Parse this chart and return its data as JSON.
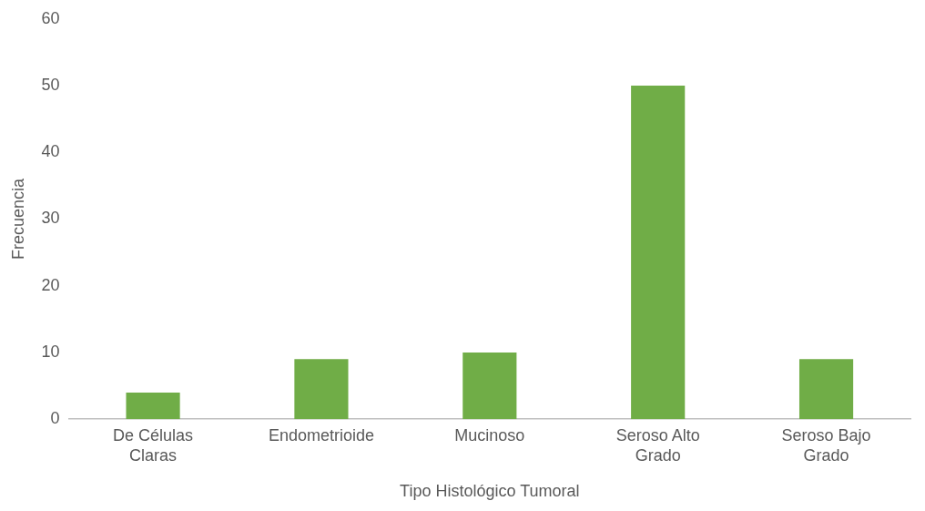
{
  "chart_data": {
    "type": "bar",
    "xlabel": "Tipo Histológico Tumoral",
    "ylabel": "Frecuencia",
    "categories": [
      "De Células Claras",
      "Endometrioide",
      "Mucinoso",
      "Seroso Alto Grado",
      "Seroso Bajo Grado"
    ],
    "values": [
      4,
      9,
      10,
      50,
      9
    ],
    "color": "#70ad47",
    "ylim": [
      0,
      60
    ],
    "yticks": [
      0,
      10,
      20,
      30,
      40,
      50,
      60
    ],
    "grid": false,
    "legend": false
  }
}
